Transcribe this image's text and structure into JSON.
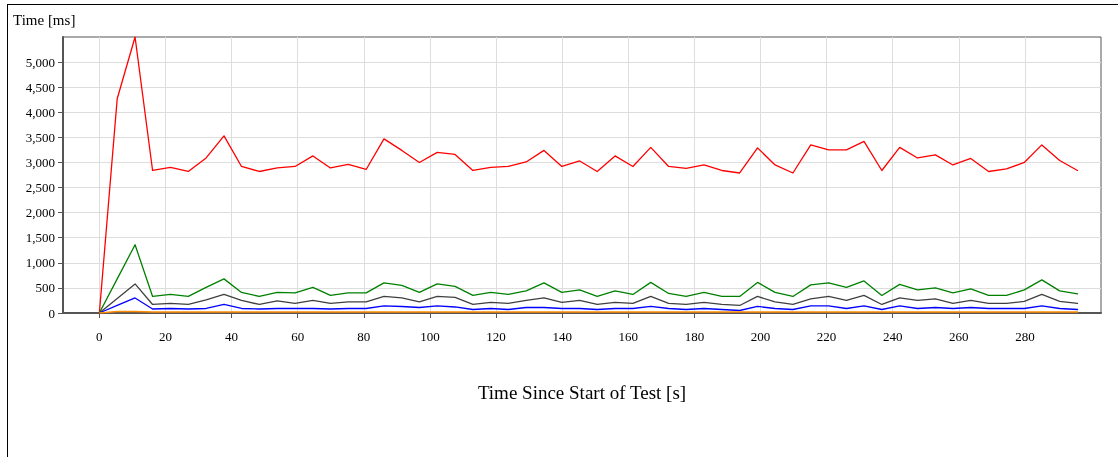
{
  "chart_data": {
    "type": "line",
    "xlabel": "Time Since Start of Test [s]",
    "ylabel": "Time [ms]",
    "x": [
      0,
      5.4,
      10.8,
      16.1,
      21.5,
      26.9,
      32.3,
      37.7,
      43.0,
      48.4,
      53.8,
      59.2,
      64.6,
      69.9,
      75.3,
      80.7,
      86.1,
      91.5,
      96.8,
      102.2,
      107.6,
      113.0,
      118.4,
      123.7,
      129.1,
      134.5,
      139.9,
      145.3,
      150.6,
      156.0,
      161.4,
      166.8,
      172.2,
      177.5,
      182.9,
      188.3,
      193.7,
      199.1,
      204.4,
      209.8,
      215.2,
      220.6,
      226.0,
      231.3,
      236.7,
      242.1,
      247.5,
      252.9,
      258.2,
      263.6,
      269.0,
      274.4,
      279.8,
      285.1,
      290.5,
      295.9
    ],
    "series": [
      {
        "color": "#ff0000",
        "values": [
          0,
          4270,
          5500,
          2840,
          2900,
          2820,
          3090,
          3530,
          2920,
          2820,
          2890,
          2920,
          3130,
          2890,
          2960,
          2860,
          3470,
          3240,
          3000,
          3200,
          3160,
          2840,
          2900,
          2920,
          3010,
          3240,
          2920,
          3030,
          2820,
          3130,
          2920,
          3300,
          2920,
          2880,
          2950,
          2840,
          2790,
          3290,
          2950,
          2790,
          3350,
          3250,
          3250,
          3420,
          2840,
          3300,
          3090,
          3150,
          2950,
          3080,
          2820,
          2870,
          3000,
          3350,
          3040,
          2840
        ]
      },
      {
        "color": "#008000",
        "values": [
          0,
          680,
          1360,
          330,
          370,
          330,
          510,
          680,
          410,
          330,
          410,
          400,
          510,
          350,
          400,
          400,
          600,
          550,
          410,
          580,
          530,
          350,
          410,
          370,
          440,
          600,
          410,
          460,
          330,
          440,
          370,
          610,
          390,
          330,
          410,
          330,
          330,
          610,
          410,
          330,
          560,
          600,
          510,
          640,
          350,
          570,
          460,
          500,
          400,
          480,
          350,
          350,
          460,
          660,
          440,
          380
        ]
      },
      {
        "color": "#404040",
        "values": [
          0,
          290,
          580,
          170,
          190,
          170,
          260,
          370,
          250,
          170,
          240,
          190,
          250,
          190,
          220,
          220,
          330,
          300,
          220,
          330,
          310,
          170,
          210,
          190,
          250,
          300,
          210,
          250,
          170,
          210,
          190,
          330,
          190,
          170,
          210,
          170,
          150,
          330,
          220,
          170,
          280,
          330,
          250,
          350,
          170,
          300,
          250,
          280,
          190,
          250,
          190,
          190,
          230,
          370,
          230,
          190
        ]
      },
      {
        "color": "#0000ff",
        "values": [
          0,
          150,
          300,
          80,
          90,
          80,
          90,
          170,
          90,
          80,
          90,
          90,
          90,
          80,
          90,
          90,
          140,
          130,
          110,
          140,
          120,
          70,
          90,
          70,
          110,
          110,
          90,
          90,
          70,
          90,
          90,
          130,
          90,
          70,
          90,
          70,
          50,
          130,
          90,
          70,
          140,
          140,
          90,
          140,
          70,
          140,
          90,
          110,
          90,
          110,
          90,
          90,
          90,
          140,
          90,
          70
        ]
      },
      {
        "color": "#ff8c00",
        "values": [
          0,
          30,
          30,
          20,
          20,
          20,
          20,
          20,
          20,
          20,
          20,
          20,
          20,
          20,
          20,
          20,
          20,
          20,
          20,
          20,
          20,
          20,
          20,
          20,
          20,
          20,
          20,
          20,
          20,
          20,
          20,
          20,
          20,
          20,
          20,
          20,
          20,
          20,
          20,
          20,
          20,
          20,
          20,
          20,
          20,
          20,
          20,
          20,
          20,
          20,
          20,
          20,
          20,
          20,
          20,
          20
        ]
      }
    ],
    "xlim": [
      -11,
      303
    ],
    "xticks": [
      0,
      20,
      40,
      60,
      80,
      100,
      120,
      140,
      160,
      180,
      200,
      220,
      240,
      260,
      280
    ],
    "ylim": [
      0,
      5500
    ],
    "yticks": [
      0,
      500,
      {
        "value": 1000,
        "label": "1,000"
      },
      {
        "value": 1500,
        "label": "1,500"
      },
      {
        "value": 2000,
        "label": "2,000"
      },
      {
        "value": 2500,
        "label": "2,500"
      },
      {
        "value": 3000,
        "label": "3,000"
      },
      {
        "value": 3500,
        "label": "3,500"
      },
      {
        "value": 4000,
        "label": "4,000"
      },
      {
        "value": 4500,
        "label": "4,500"
      },
      {
        "value": 5000,
        "label": "5,000"
      }
    ],
    "grid": true,
    "marker": "none",
    "line_style": "solid"
  }
}
